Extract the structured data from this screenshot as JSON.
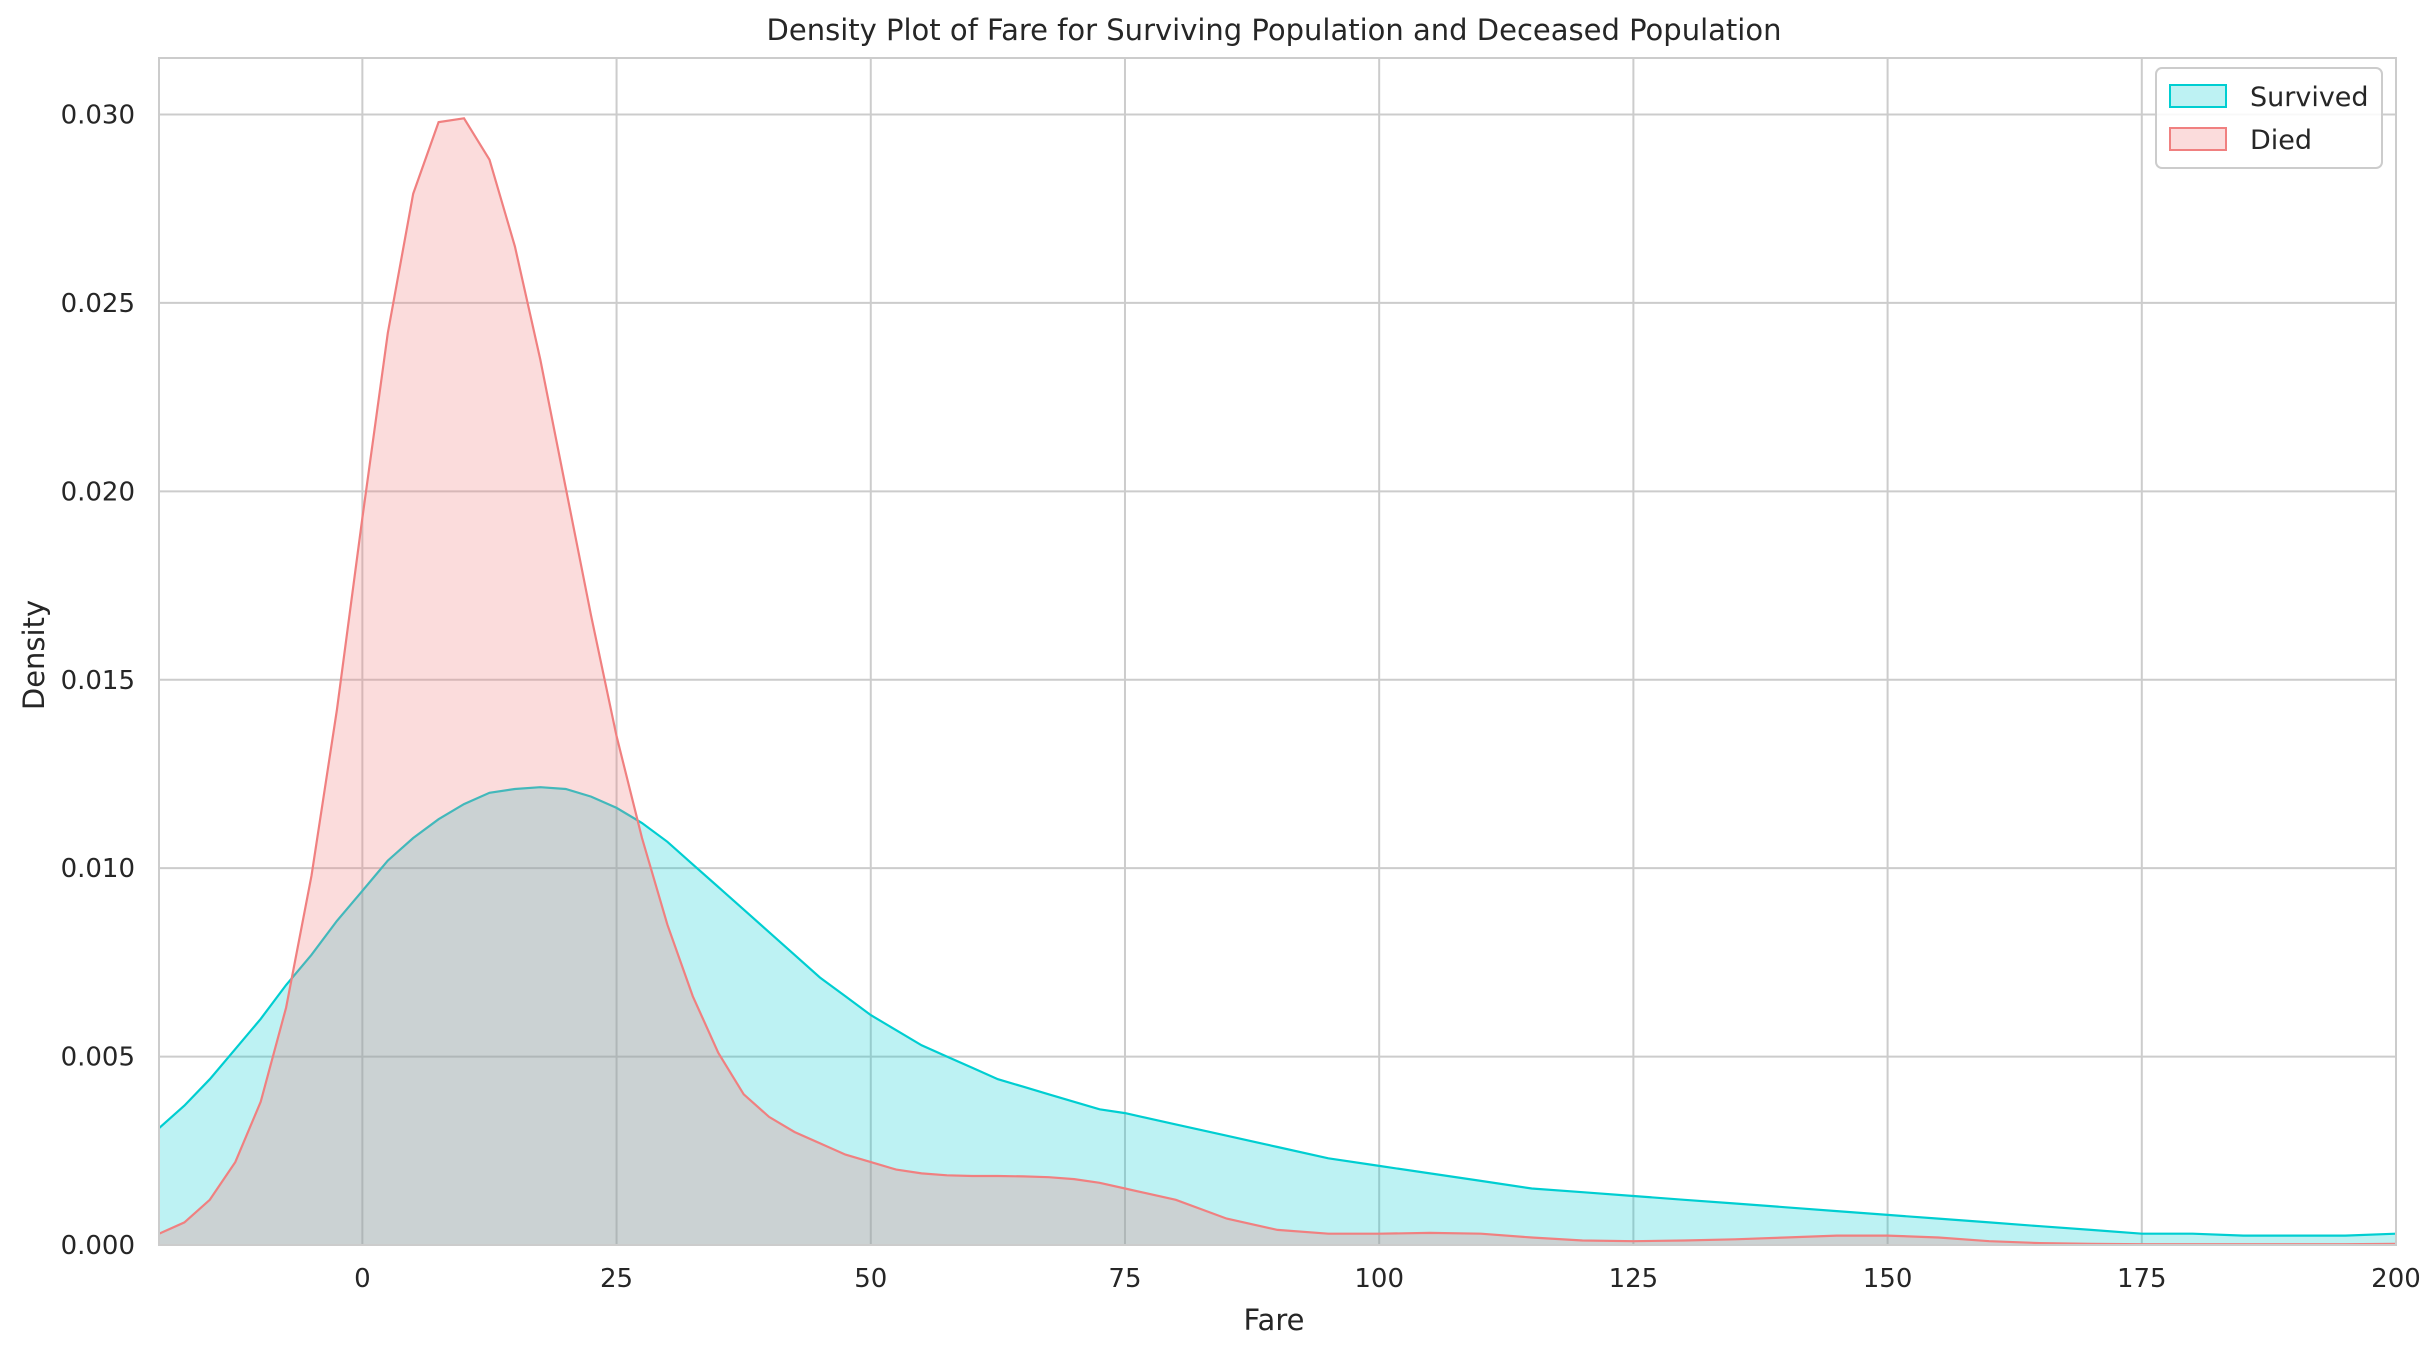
{
  "chart_data": {
    "type": "area",
    "title": "Density Plot of Fare for Surviving Population and Deceased Population",
    "xlabel": "Fare",
    "ylabel": "Density",
    "xlim": [
      -20,
      200
    ],
    "ylim": [
      0,
      0.0315
    ],
    "xticks": [
      0,
      25,
      50,
      75,
      100,
      125,
      150,
      175,
      200
    ],
    "xtick_labels": [
      "0",
      "25",
      "50",
      "75",
      "100",
      "125",
      "150",
      "175",
      "200"
    ],
    "yticks": [
      0,
      0.005,
      0.01,
      0.015,
      0.02,
      0.025,
      0.03
    ],
    "ytick_labels": [
      "0.000",
      "0.005",
      "0.010",
      "0.015",
      "0.020",
      "0.025",
      "0.030"
    ],
    "grid": true,
    "legend_position": "top-right",
    "series": [
      {
        "name": "Survived",
        "color": "#00ced1",
        "fill_opacity": 0.26,
        "x": [
          -20,
          -17.5,
          -15,
          -12.5,
          -10,
          -7.5,
          -5,
          -2.5,
          0,
          2.5,
          5,
          7.5,
          10,
          12.5,
          15,
          17.5,
          20,
          22.5,
          25,
          27.5,
          30,
          32.5,
          35,
          37.5,
          40,
          42.5,
          45,
          47.5,
          50,
          52.5,
          55,
          57.5,
          60,
          62.5,
          65,
          67.5,
          70,
          72.5,
          75,
          80,
          85,
          90,
          95,
          100,
          105,
          110,
          115,
          120,
          125,
          130,
          135,
          140,
          145,
          150,
          155,
          160,
          165,
          170,
          175,
          180,
          185,
          190,
          195,
          200
        ],
        "y": [
          0.0031,
          0.0037,
          0.0044,
          0.0052,
          0.006,
          0.0069,
          0.0077,
          0.0086,
          0.0094,
          0.0102,
          0.0108,
          0.0113,
          0.0117,
          0.012,
          0.0121,
          0.01215,
          0.0121,
          0.0119,
          0.0116,
          0.0112,
          0.0107,
          0.0101,
          0.0095,
          0.0089,
          0.0083,
          0.0077,
          0.0071,
          0.0066,
          0.0061,
          0.0057,
          0.0053,
          0.005,
          0.0047,
          0.0044,
          0.0042,
          0.004,
          0.0038,
          0.0036,
          0.0035,
          0.0032,
          0.0029,
          0.0026,
          0.0023,
          0.0021,
          0.0019,
          0.0017,
          0.0015,
          0.0014,
          0.0013,
          0.0012,
          0.0011,
          0.001,
          0.0009,
          0.0008,
          0.0007,
          0.0006,
          0.0005,
          0.0004,
          0.0003,
          0.0003,
          0.00025,
          0.00025,
          0.00025,
          0.0003
        ]
      },
      {
        "name": "Died",
        "color": "#f08080",
        "fill_opacity": 0.28,
        "x": [
          -20,
          -17.5,
          -15,
          -12.5,
          -10,
          -7.5,
          -5,
          -2.5,
          0,
          2.5,
          5,
          7.5,
          10,
          12.5,
          15,
          17.5,
          20,
          22.5,
          25,
          27.5,
          30,
          32.5,
          35,
          37.5,
          40,
          42.5,
          45,
          47.5,
          50,
          52.5,
          55,
          57.5,
          60,
          62.5,
          65,
          67.5,
          70,
          72.5,
          75,
          80,
          85,
          90,
          95,
          100,
          105,
          110,
          115,
          120,
          125,
          130,
          135,
          140,
          145,
          150,
          155,
          160,
          165,
          170,
          175,
          180,
          185,
          190,
          195,
          200
        ],
        "y": [
          0.0003,
          0.0006,
          0.0012,
          0.0022,
          0.0038,
          0.0063,
          0.0098,
          0.0142,
          0.0193,
          0.0242,
          0.0279,
          0.0298,
          0.0299,
          0.0288,
          0.0265,
          0.0235,
          0.0201,
          0.0167,
          0.0135,
          0.0108,
          0.0085,
          0.0066,
          0.0051,
          0.004,
          0.0034,
          0.003,
          0.0027,
          0.0024,
          0.0022,
          0.002,
          0.0019,
          0.00185,
          0.00183,
          0.00183,
          0.00182,
          0.0018,
          0.00175,
          0.00165,
          0.0015,
          0.0012,
          0.0007,
          0.0004,
          0.0003,
          0.0003,
          0.00032,
          0.0003,
          0.0002,
          0.00012,
          0.0001,
          0.00012,
          0.00015,
          0.0002,
          0.00025,
          0.00025,
          0.0002,
          0.0001,
          5e-05,
          3e-05,
          2e-05,
          2e-05,
          2e-05,
          2e-05,
          2e-05,
          3e-05
        ]
      }
    ]
  }
}
